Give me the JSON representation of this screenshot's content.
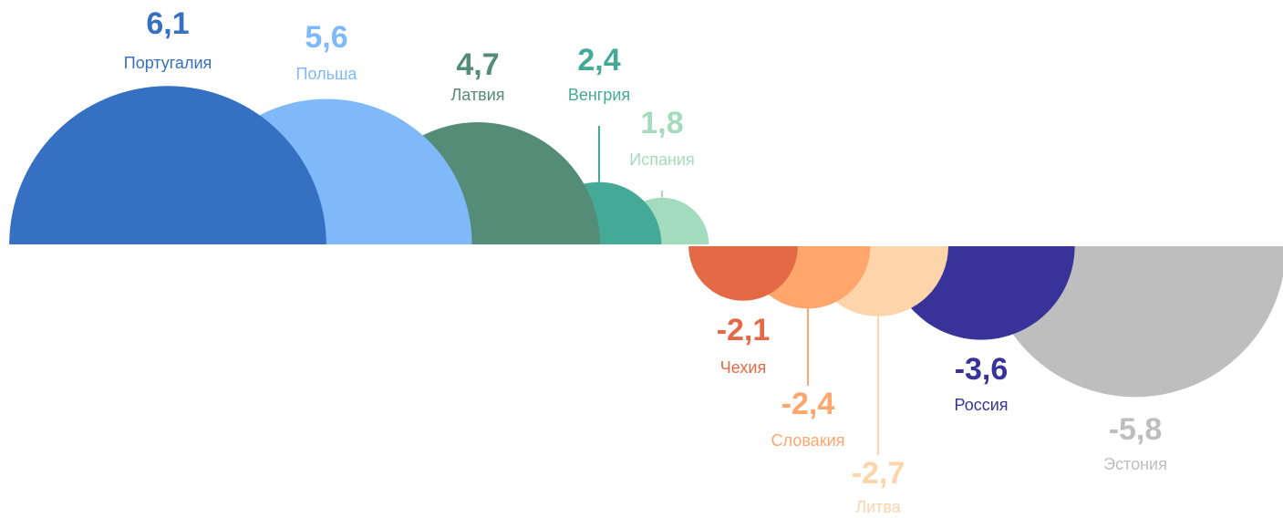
{
  "chart_data": {
    "type": "semicircle",
    "categories": [
      "Португалия",
      "Польша",
      "Латвия",
      "Венгрия",
      "Испания",
      "Чехия",
      "Словакия",
      "Литва",
      "Россия",
      "Эстония"
    ],
    "values": [
      6.1,
      5.6,
      4.7,
      2.4,
      1.8,
      -2.1,
      -2.4,
      -2.7,
      -3.6,
      -5.8
    ],
    "value_labels": [
      "6,1",
      "5,6",
      "4,7",
      "2,4",
      "1,8",
      "-2,1",
      "-2,4",
      "-2,7",
      "-3,6",
      "-5,8"
    ],
    "colors": [
      "#3570c2",
      "#7fb9fa",
      "#558c77",
      "#44a996",
      "#a3dcbc",
      "#e36a44",
      "#fea66c",
      "#fed4aa",
      "#373399",
      "#bebebe"
    ]
  }
}
